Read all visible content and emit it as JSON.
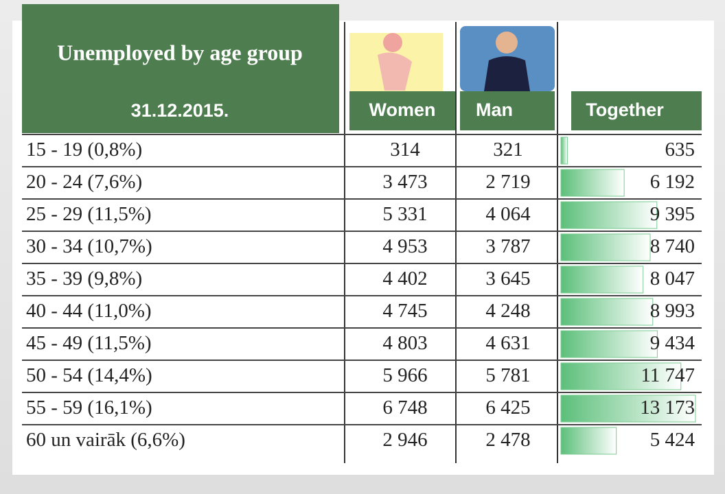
{
  "header": {
    "title": "Unemployed by age group",
    "date": "31.12.2015.",
    "women": "Women",
    "man": "Man",
    "together": "Together"
  },
  "rows": [
    {
      "group": "15 - 19 (0,8%)",
      "women": "314",
      "man": "321",
      "together": 635,
      "together_label": "635"
    },
    {
      "group": "20 - 24 (7,6%)",
      "women": "3 473",
      "man": "2 719",
      "together": 6192,
      "together_label": "6 192"
    },
    {
      "group": "25 - 29 (11,5%)",
      "women": "5 331",
      "man": "4 064",
      "together": 9395,
      "together_label": "9 395"
    },
    {
      "group": "30 - 34 (10,7%)",
      "women": "4 953",
      "man": "3 787",
      "together": 8740,
      "together_label": "8 740"
    },
    {
      "group": "35 - 39 (9,8%)",
      "women": "4 402",
      "man": "3 645",
      "together": 8047,
      "together_label": "8 047"
    },
    {
      "group": "40 - 44 (11,0%)",
      "women": "4 745",
      "man": "4 248",
      "together": 8993,
      "together_label": "8 993"
    },
    {
      "group": "45 - 49 (11,5%)",
      "women": "4 803",
      "man": "4 631",
      "together": 9434,
      "together_label": "9 434"
    },
    {
      "group": "50 - 54 (14,4%)",
      "women": "5 966",
      "man": "5 781",
      "together": 11747,
      "together_label": "11 747"
    },
    {
      "group": "55 - 59 (16,1%)",
      "women": "6 748",
      "man": "6 425",
      "together": 13173,
      "together_label": "13 173"
    },
    {
      "group": "60 un vairāk (6,6%)",
      "women": "2 946",
      "man": "2 478",
      "together": 5424,
      "together_label": "5 424"
    }
  ]
}
